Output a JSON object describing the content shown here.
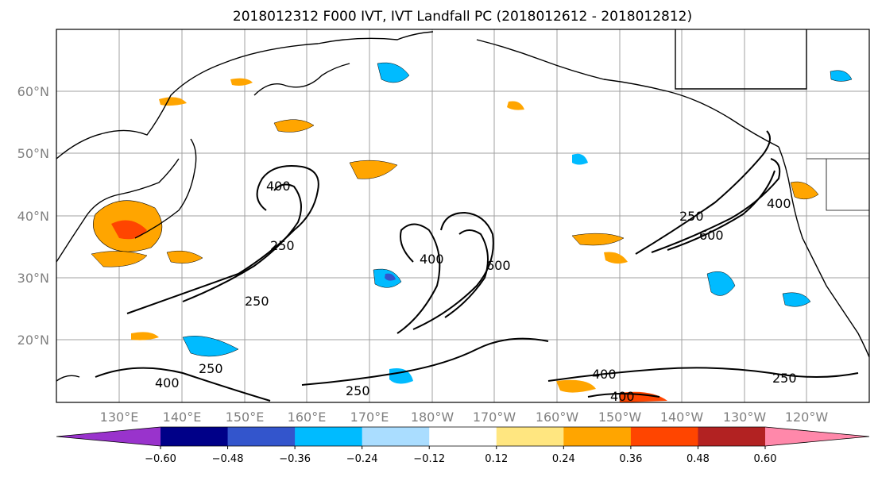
{
  "title": "2018012312 F000 IVT, IVT Landfall PC (2018012612 - 2018012812)",
  "lat_labels": [
    "60°N",
    "50°N",
    "40°N",
    "30°N",
    "20°N"
  ],
  "lon_labels": [
    "130°E",
    "140°E",
    "150°E",
    "160°E",
    "170°E",
    "180°W",
    "170°W",
    "160°W",
    "150°W",
    "140°W",
    "130°W",
    "120°W"
  ],
  "contour_labels": {
    "k250_west": "250",
    "k250_south": "250",
    "k250_bottom": "250",
    "k250_east": "250",
    "k250_gulf": "250",
    "k400_sw": "400",
    "k400_mid": "400",
    "k400_se": "400",
    "k400_se2": "400",
    "k400_gulf": "400",
    "k400_kuril": "400",
    "k250_kuril": "250",
    "k600_mid": "600",
    "k600_gulf": "600"
  },
  "colorbar": {
    "colors": [
      "#9933cc",
      "#000088",
      "#3355cc",
      "#00bbff",
      "#aaddff",
      "#ffffff",
      "#ffe680",
      "#ffa500",
      "#ff4500",
      "#b22222",
      "#ff88aa"
    ],
    "tick_labels": [
      "−0.60",
      "−0.48",
      "−0.36",
      "−0.24",
      "−0.12",
      "0.12",
      "0.24",
      "0.36",
      "0.48",
      "0.60"
    ]
  },
  "legend_title": "",
  "colors": {
    "negative_anomaly": "#00bbff",
    "positive_anomaly": "#ffa500",
    "contour": "#000000",
    "grid": "#a0a0a0"
  }
}
